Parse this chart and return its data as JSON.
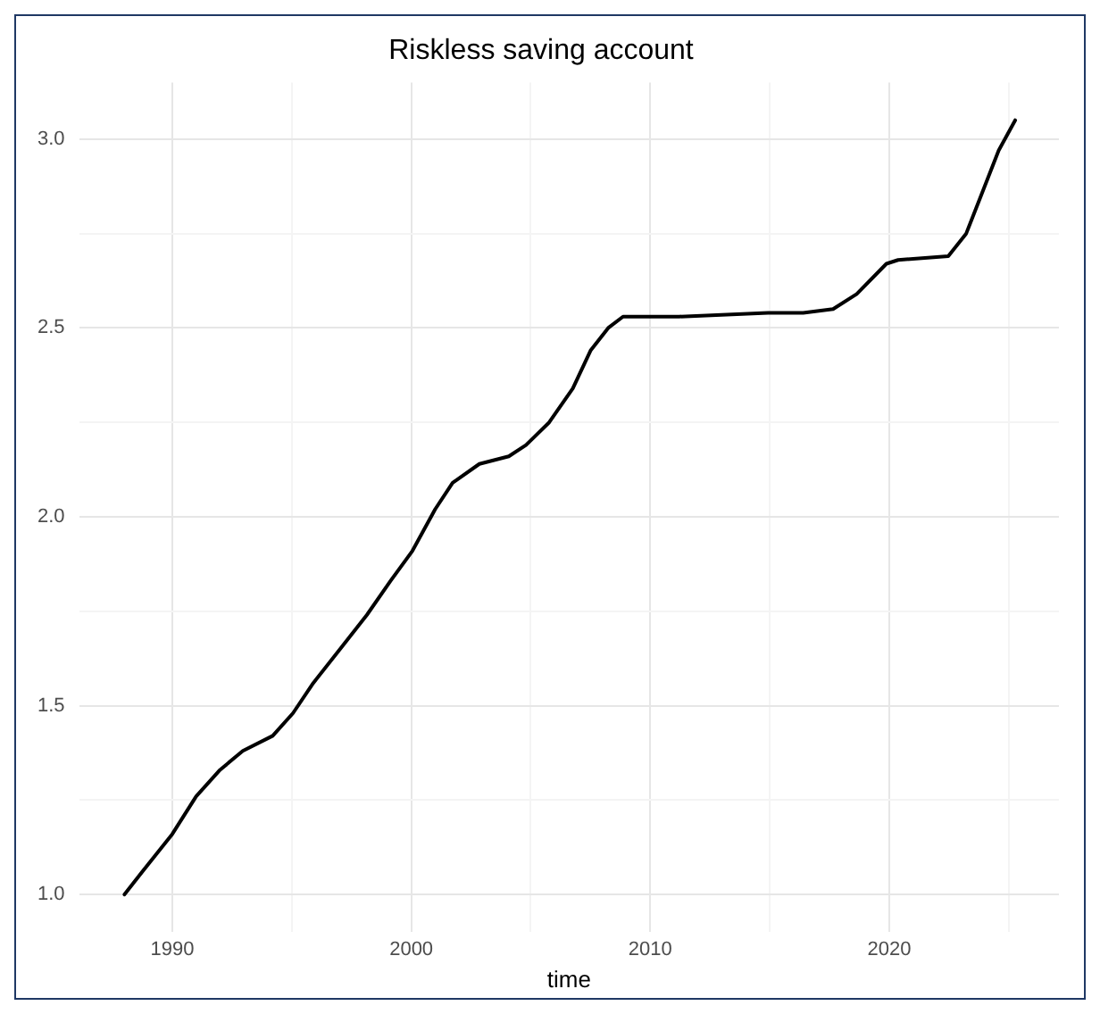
{
  "chart_data": {
    "type": "line",
    "title": "Riskless saving account",
    "xlabel": "time",
    "x": [
      1988.0,
      1988.74,
      1990.0,
      1991.0,
      1992.0,
      1992.95,
      1994.2,
      1995.05,
      1995.9,
      1997.15,
      1998.14,
      1999.13,
      2000.05,
      2001.0,
      2001.73,
      2002.85,
      2004.08,
      2004.8,
      2005.77,
      2006.76,
      2007.5,
      2008.24,
      2008.86,
      2011.2,
      2014.93,
      2016.4,
      2017.65,
      2018.64,
      2019.88,
      2020.37,
      2022.47,
      2023.22,
      2023.84,
      2024.58,
      2025.27
    ],
    "series": [
      {
        "color": "#000000",
        "values": [
          1.0,
          1.06,
          1.16,
          1.26,
          1.33,
          1.38,
          1.42,
          1.48,
          1.56,
          1.66,
          1.74,
          1.83,
          1.91,
          2.02,
          2.09,
          2.14,
          2.16,
          2.19,
          2.25,
          2.34,
          2.44,
          2.5,
          2.53,
          2.53,
          2.54,
          2.54,
          2.55,
          2.59,
          2.67,
          2.68,
          2.69,
          2.75,
          2.85,
          2.97,
          3.05
        ]
      }
    ],
    "xlim": [
      1986.1,
      2027.1
    ],
    "ylim": [
      0.9,
      3.15
    ],
    "xticks": [
      1990,
      {
        "value": 1995,
        "label": null
      },
      2000,
      {
        "value": 2005,
        "label": null
      },
      2010,
      {
        "value": 2015,
        "label": null
      },
      2020,
      {
        "value": 2025,
        "label": null
      }
    ],
    "yticks": [
      {
        "value": 1,
        "label": "1.0"
      },
      {
        "value": 1.25,
        "label": null
      },
      1.5,
      {
        "value": 1.75,
        "label": null
      },
      {
        "value": 2,
        "label": "2.0"
      },
      {
        "value": 2.25,
        "label": null
      },
      2.5,
      {
        "value": 2.75,
        "label": null
      },
      {
        "value": 3,
        "label": "3.0"
      }
    ],
    "grid": true,
    "legend": false,
    "marker": "none",
    "line_style": "solid"
  }
}
